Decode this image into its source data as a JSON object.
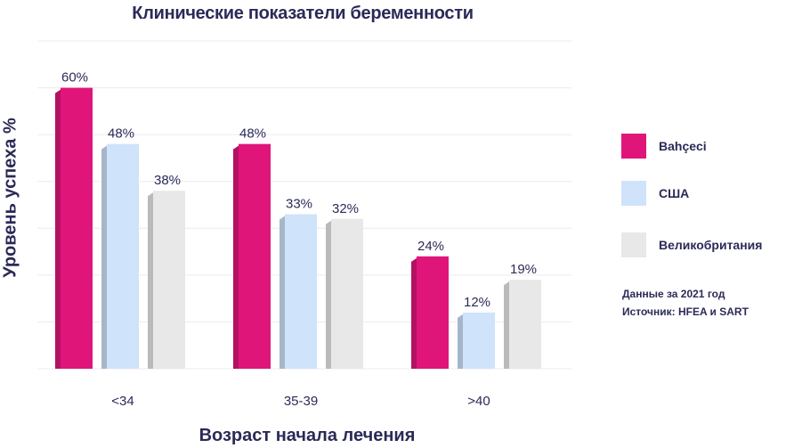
{
  "chart_data": {
    "type": "bar",
    "title": "Клинические показатели беременности",
    "xlabel": "Возраст начала лечения",
    "ylabel": "Уровень успеха %",
    "categories": [
      "<34",
      "35-39",
      ">40"
    ],
    "series": [
      {
        "name": "Bahçeci",
        "values": [
          60,
          48,
          24
        ],
        "labels": [
          "60%",
          "48%",
          "24%"
        ],
        "color": "#e0157a"
      },
      {
        "name": "США",
        "values": [
          48,
          33,
          12
        ],
        "labels": [
          "48%",
          "33%",
          "12%"
        ],
        "color": "#cfe3fb"
      },
      {
        "name": "Великобритания",
        "values": [
          38,
          32,
          19
        ],
        "labels": [
          "38%",
          "32%",
          "19%"
        ],
        "color": "#e8e8e8"
      }
    ],
    "ylim": [
      0,
      70
    ],
    "grid": true,
    "legend": "right"
  },
  "notes": {
    "line1": "Данные за 2021 год",
    "line2": "Источник: HFEA и SART"
  }
}
